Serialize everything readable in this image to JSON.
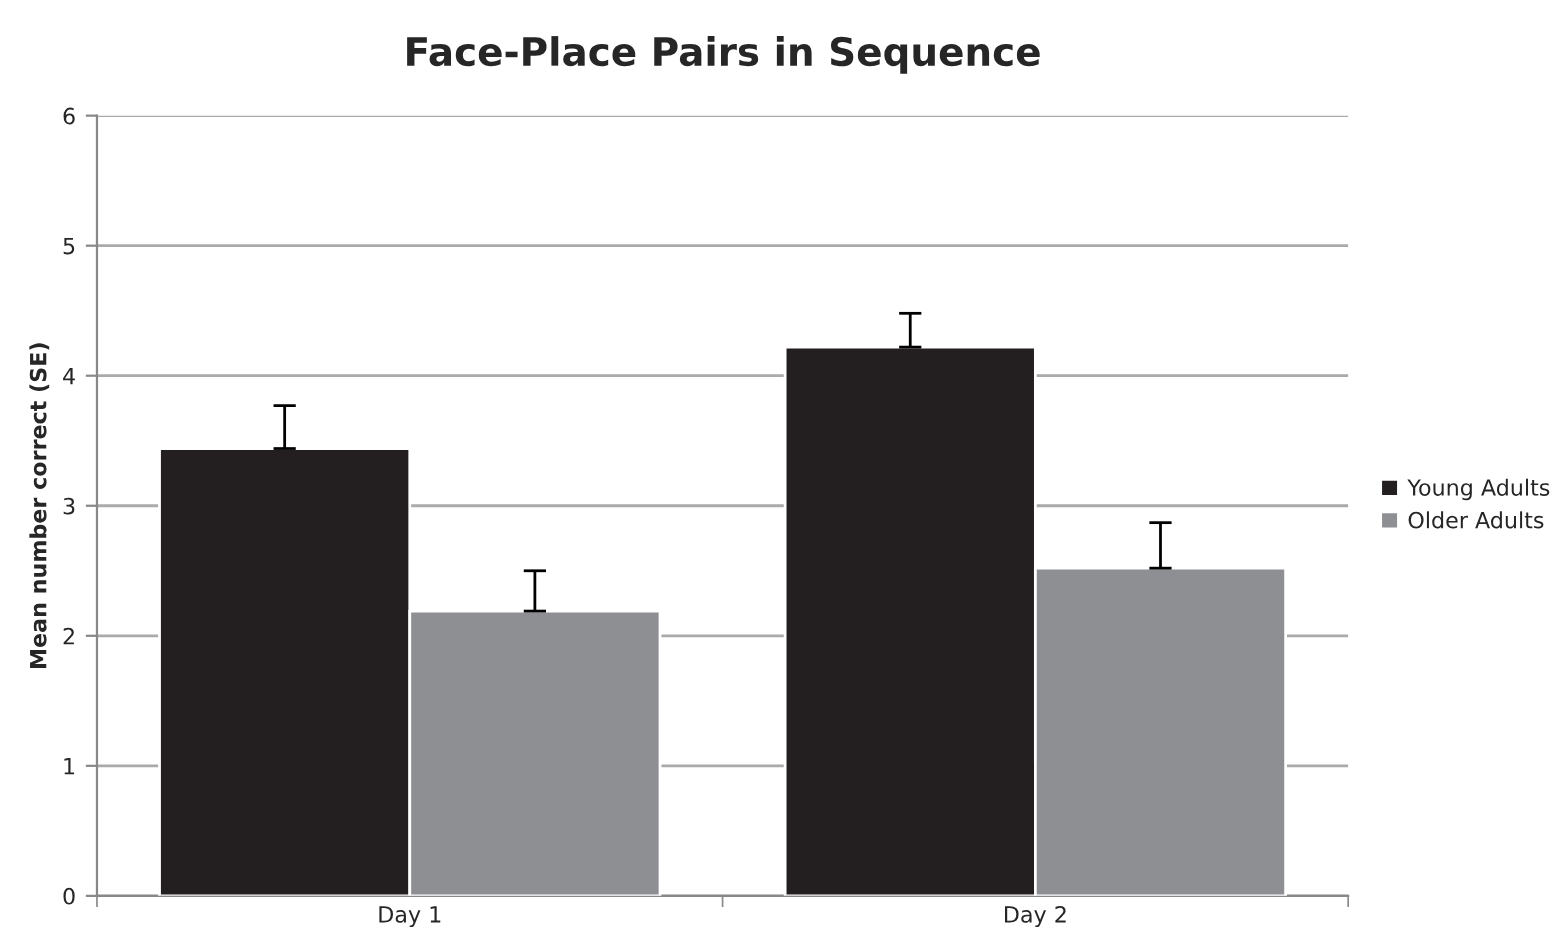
{
  "chart_data": {
    "type": "bar",
    "title": "Face-Place Pairs in Sequence",
    "ylabel": "Mean number correct (SE)",
    "categories": [
      "Day 1",
      "Day 2"
    ],
    "series": [
      {
        "name": "Young Adults",
        "color": "#231f20",
        "values": [
          3.44,
          4.22
        ],
        "errors": [
          [
            3.44,
            3.77
          ],
          [
            4.22,
            4.48
          ]
        ]
      },
      {
        "name": "Older Adults",
        "color": "#8e8f92",
        "values": [
          2.19,
          2.52
        ],
        "errors": [
          [
            2.19,
            2.5
          ],
          [
            2.52,
            2.87
          ]
        ]
      }
    ],
    "ylim": [
      0,
      6
    ],
    "yticks": [
      0,
      1,
      2,
      3,
      4,
      5,
      6
    ],
    "grid": "y",
    "legend": "right"
  }
}
